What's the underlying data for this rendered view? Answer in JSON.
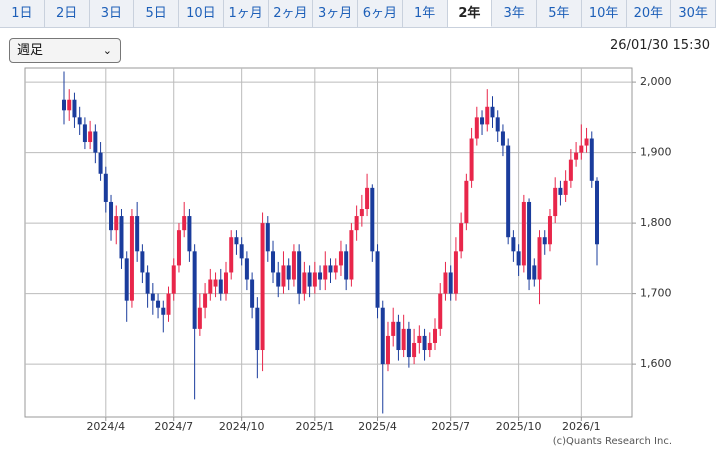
{
  "tabs": [
    "1日",
    "2日",
    "3日",
    "5日",
    "10日",
    "1ヶ月",
    "2ヶ月",
    "3ヶ月",
    "6ヶ月",
    "1年",
    "2年",
    "3年",
    "5年",
    "10年",
    "20年",
    "30年"
  ],
  "selected_tab": 10,
  "dropdown": "週足",
  "timestamp": "26/01/30 15:30",
  "credit": "(c)Quants Research Inc.",
  "chart_data": {
    "type": "candlestick",
    "up_color": "#e8264a",
    "down_color": "#1a3c9c",
    "grid": true,
    "ylim": [
      1525,
      2020
    ],
    "yticks": [
      {
        "value": 1600,
        "label": "1,600"
      },
      {
        "value": 1700,
        "label": "1,700"
      },
      {
        "value": 1800,
        "label": "1,800"
      },
      {
        "value": 1900,
        "label": "1,900"
      },
      {
        "value": 2000,
        "label": "2,000"
      }
    ],
    "categories": [
      null,
      null,
      null,
      null,
      null,
      null,
      null,
      null,
      "2024/4",
      null,
      null,
      null,
      null,
      null,
      null,
      null,
      null,
      null,
      null,
      null,
      null,
      "2024/7",
      null,
      null,
      null,
      null,
      null,
      null,
      null,
      null,
      null,
      null,
      null,
      null,
      "2024/10",
      null,
      null,
      null,
      null,
      null,
      null,
      null,
      null,
      null,
      null,
      null,
      null,
      null,
      "2025/1",
      null,
      null,
      null,
      null,
      null,
      null,
      null,
      null,
      null,
      null,
      null,
      "2025/4",
      null,
      null,
      null,
      null,
      null,
      null,
      null,
      null,
      null,
      null,
      null,
      null,
      null,
      "2025/7",
      null,
      null,
      null,
      null,
      null,
      null,
      null,
      null,
      null,
      null,
      null,
      null,
      "2025/10",
      null,
      null,
      null,
      null,
      null,
      null,
      null,
      null,
      null,
      null,
      null,
      "2026/1",
      null,
      null,
      null
    ],
    "open": [
      1975,
      1960,
      1975,
      1950,
      1940,
      1915,
      1930,
      1900,
      1870,
      1830,
      1790,
      1810,
      1750,
      1690,
      1810,
      1760,
      1730,
      1700,
      1690,
      1680,
      1670,
      1700,
      1740,
      1790,
      1810,
      1760,
      1650,
      1680,
      1700,
      1710,
      1720,
      1700,
      1730,
      1780,
      1770,
      1750,
      1720,
      1680,
      1620,
      1800,
      1760,
      1730,
      1710,
      1740,
      1720,
      1760,
      1700,
      1730,
      1710,
      1730,
      1720,
      1740,
      1730,
      1740,
      1760,
      1720,
      1790,
      1810,
      1820,
      1850,
      1760,
      1680,
      1600,
      1640,
      1660,
      1620,
      1650,
      1610,
      1630,
      1640,
      1620,
      1630,
      1650,
      1700,
      1730,
      1700,
      1760,
      1800,
      1860,
      1920,
      1950,
      1940,
      1965,
      1950,
      1930,
      1910,
      1780,
      1760,
      1740,
      1830,
      1740,
      1720,
      1780,
      1770,
      1810,
      1850,
      1840,
      1860,
      1890,
      1900,
      1910,
      1920,
      1860
    ],
    "high": [
      2015,
      1990,
      1985,
      1965,
      1950,
      1945,
      1940,
      1915,
      1880,
      1840,
      1825,
      1820,
      1760,
      1820,
      1830,
      1770,
      1740,
      1715,
      1700,
      1690,
      1710,
      1750,
      1800,
      1830,
      1820,
      1770,
      1700,
      1715,
      1735,
      1730,
      1735,
      1745,
      1790,
      1790,
      1780,
      1760,
      1730,
      1695,
      1815,
      1810,
      1775,
      1745,
      1760,
      1750,
      1770,
      1770,
      1745,
      1740,
      1745,
      1740,
      1760,
      1750,
      1750,
      1775,
      1770,
      1800,
      1825,
      1840,
      1870,
      1855,
      1770,
      1690,
      1660,
      1680,
      1670,
      1670,
      1660,
      1650,
      1655,
      1650,
      1645,
      1665,
      1715,
      1745,
      1740,
      1780,
      1815,
      1870,
      1935,
      1965,
      1960,
      1990,
      1980,
      1960,
      1940,
      1920,
      1790,
      1770,
      1840,
      1835,
      1750,
      1790,
      1790,
      1820,
      1865,
      1860,
      1875,
      1905,
      1915,
      1940,
      1935,
      1930,
      1865
    ],
    "low": [
      1940,
      1945,
      1935,
      1925,
      1905,
      1905,
      1885,
      1860,
      1815,
      1775,
      1770,
      1735,
      1660,
      1680,
      1745,
      1715,
      1680,
      1670,
      1665,
      1645,
      1660,
      1690,
      1730,
      1780,
      1745,
      1550,
      1640,
      1665,
      1690,
      1695,
      1690,
      1690,
      1720,
      1755,
      1740,
      1705,
      1665,
      1580,
      1590,
      1745,
      1715,
      1695,
      1700,
      1705,
      1710,
      1685,
      1690,
      1695,
      1700,
      1705,
      1705,
      1715,
      1720,
      1725,
      1705,
      1710,
      1775,
      1795,
      1810,
      1745,
      1665,
      1530,
      1590,
      1625,
      1605,
      1610,
      1595,
      1600,
      1615,
      1605,
      1610,
      1620,
      1640,
      1690,
      1690,
      1690,
      1750,
      1790,
      1850,
      1910,
      1925,
      1930,
      1935,
      1915,
      1895,
      1770,
      1745,
      1725,
      1730,
      1705,
      1710,
      1685,
      1755,
      1760,
      1800,
      1825,
      1830,
      1850,
      1880,
      1890,
      1900,
      1850,
      1740
    ],
    "close": [
      1960,
      1975,
      1950,
      1940,
      1915,
      1930,
      1900,
      1870,
      1830,
      1790,
      1810,
      1750,
      1690,
      1810,
      1760,
      1730,
      1700,
      1690,
      1680,
      1670,
      1700,
      1740,
      1790,
      1810,
      1760,
      1650,
      1680,
      1700,
      1720,
      1720,
      1700,
      1730,
      1780,
      1770,
      1750,
      1720,
      1680,
      1620,
      1800,
      1760,
      1730,
      1710,
      1740,
      1720,
      1760,
      1700,
      1730,
      1710,
      1730,
      1720,
      1740,
      1730,
      1740,
      1760,
      1720,
      1790,
      1810,
      1820,
      1850,
      1760,
      1680,
      1600,
      1640,
      1660,
      1620,
      1650,
      1610,
      1630,
      1640,
      1620,
      1630,
      1650,
      1700,
      1730,
      1700,
      1760,
      1800,
      1860,
      1920,
      1950,
      1940,
      1965,
      1950,
      1930,
      1910,
      1780,
      1760,
      1740,
      1830,
      1720,
      1720,
      1780,
      1770,
      1810,
      1850,
      1840,
      1860,
      1890,
      1900,
      1910,
      1920,
      1860,
      1770
    ]
  }
}
